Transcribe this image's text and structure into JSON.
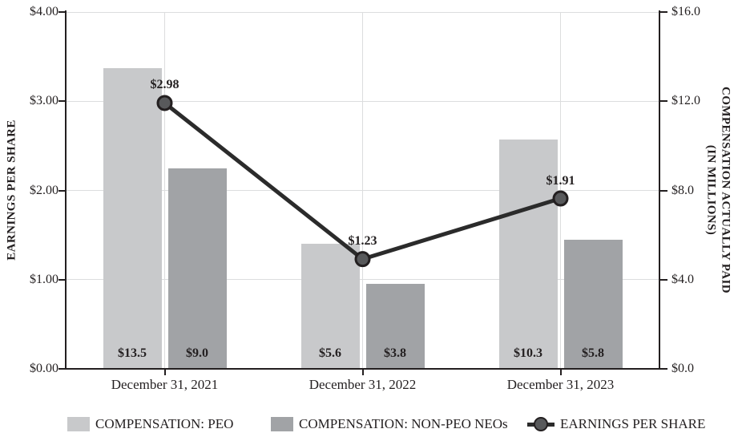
{
  "chart_data": {
    "type": "bar",
    "subtype": "bar-line-combo",
    "title": "",
    "categories": [
      "December 31, 2021",
      "December 31, 2022",
      "December 31, 2023"
    ],
    "series": [
      {
        "name": "COMPENSATION: PEO",
        "type": "bar",
        "axis": "right",
        "values": [
          13.5,
          5.6,
          10.3
        ],
        "labels": [
          "$13.5",
          "$5.6",
          "$10.3"
        ],
        "color": "#c8c9cb"
      },
      {
        "name": "COMPENSATION: NON-PEO NEOs",
        "type": "bar",
        "axis": "right",
        "values": [
          9.0,
          3.8,
          5.8
        ],
        "labels": [
          "$9.0",
          "$3.8",
          "$5.8"
        ],
        "color": "#a1a3a6"
      },
      {
        "name": "EARNINGS PER SHARE",
        "type": "line",
        "axis": "left",
        "values": [
          2.98,
          1.23,
          1.91
        ],
        "labels": [
          "$2.98",
          "$1.23",
          "$1.91"
        ],
        "color": "#2b2b2b",
        "marker_color": "#58595b",
        "marker_stroke": "#231f20"
      }
    ],
    "left_axis": {
      "title": "EARNINGS PER SHARE",
      "min": 0,
      "max": 4,
      "ticks": [
        {
          "label": "$4.00",
          "value": 4.0
        },
        {
          "label": "$3.00",
          "value": 3.0
        },
        {
          "label": "$2.00",
          "value": 2.0
        },
        {
          "label": "$1.00",
          "value": 1.0
        },
        {
          "label": "$0.00",
          "value": 0.0
        }
      ]
    },
    "right_axis": {
      "title_line1": "COMPENSATION ACTUALLY PAID",
      "title_line2": "(IN MILLIONS)",
      "min": 0,
      "max": 16,
      "ticks": [
        {
          "label": "$16.0",
          "value": 16.0
        },
        {
          "label": "$12.0",
          "value": 12.0
        },
        {
          "label": "$8.0",
          "value": 8.0
        },
        {
          "label": "$4.0",
          "value": 4.0
        },
        {
          "label": "$0.0",
          "value": 0.0
        }
      ]
    },
    "grid": true,
    "legend_position": "bottom",
    "colors": {
      "axis": "#231f20",
      "gridline": "#dcddde",
      "text": "#231f20"
    }
  },
  "legend": [
    {
      "label": "COMPENSATION: PEO"
    },
    {
      "label": "COMPENSATION: NON-PEO NEOs"
    },
    {
      "label": "EARNINGS PER SHARE"
    }
  ]
}
